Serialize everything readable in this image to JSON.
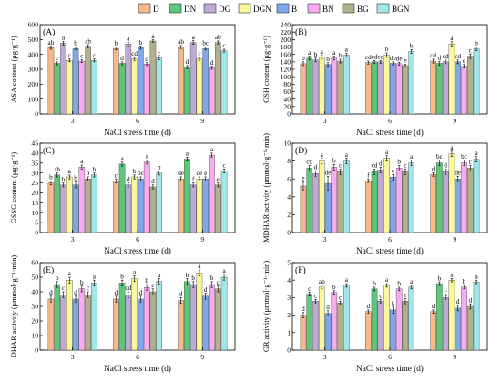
{
  "legend": [
    {
      "name": "D",
      "color": "#f7b98a"
    },
    {
      "name": "DN",
      "color": "#5ec77a"
    },
    {
      "name": "DG",
      "color": "#bfaad6"
    },
    {
      "name": "DGN",
      "color": "#fbf79c"
    },
    {
      "name": "B",
      "color": "#7fa8ec"
    },
    {
      "name": "BN",
      "color": "#f6acee"
    },
    {
      "name": "BG",
      "color": "#b1b08a"
    },
    {
      "name": "BGN",
      "color": "#9ee8ec"
    }
  ],
  "chart_data": [
    {
      "type": "bar",
      "panel": "(A)",
      "ylabel": "ASA content (μg·g⁻¹)",
      "xlabel": "NaCl stress time (d)",
      "categories": [
        "3",
        "6",
        "9"
      ],
      "ylim": [
        0,
        600
      ],
      "yticks": [
        0,
        100,
        200,
        300,
        400,
        500,
        600
      ],
      "series": [
        {
          "name": "D",
          "values": [
            445,
            440,
            450
          ],
          "errors": [
            10,
            10,
            10
          ],
          "labels": [
            "ab",
            "b",
            "ab"
          ]
        },
        {
          "name": "DN",
          "values": [
            340,
            340,
            315
          ],
          "errors": [
            10,
            10,
            10
          ],
          "labels": [
            "c",
            "d",
            "d"
          ]
        },
        {
          "name": "DG",
          "values": [
            475,
            470,
            480
          ],
          "errors": [
            12,
            12,
            12
          ],
          "labels": [
            "a",
            "a",
            "a"
          ]
        },
        {
          "name": "DGN",
          "values": [
            360,
            370,
            370
          ],
          "errors": [
            10,
            10,
            10
          ],
          "labels": [
            "c",
            "cd",
            "c"
          ]
        },
        {
          "name": "B",
          "values": [
            440,
            445,
            440
          ],
          "errors": [
            10,
            10,
            10
          ],
          "labels": [
            "b",
            "b",
            "bc"
          ]
        },
        {
          "name": "BN",
          "values": [
            355,
            335,
            310
          ],
          "errors": [
            10,
            10,
            10
          ],
          "labels": [
            "c",
            "d",
            "d"
          ]
        },
        {
          "name": "BG",
          "values": [
            455,
            490,
            480
          ],
          "errors": [
            10,
            8,
            10
          ],
          "labels": [
            "ab",
            "a",
            "ab"
          ]
        },
        {
          "name": "BGN",
          "values": [
            360,
            375,
            425
          ],
          "errors": [
            10,
            10,
            10
          ],
          "labels": [
            "c",
            "c",
            "c"
          ]
        }
      ]
    },
    {
      "type": "bar",
      "panel": "(B)",
      "ylabel": "GSH content (μg·g⁻¹)",
      "xlabel": "NaCl stress time (d)",
      "categories": [
        "3",
        "6",
        "9"
      ],
      "ylim": [
        0,
        240
      ],
      "yticks": [
        0,
        20,
        40,
        60,
        80,
        100,
        120,
        140,
        160,
        180,
        200,
        220,
        240
      ],
      "series": [
        {
          "name": "D",
          "values": [
            135,
            138,
            142
          ],
          "errors": [
            5,
            4,
            5
          ],
          "labels": [
            "b",
            "cd",
            "cd"
          ]
        },
        {
          "name": "DN",
          "values": [
            150,
            140,
            136
          ],
          "errors": [
            5,
            4,
            5
          ],
          "labels": [
            "a",
            "cd",
            "d"
          ]
        },
        {
          "name": "DG",
          "values": [
            145,
            140,
            140
          ],
          "errors": [
            5,
            4,
            5
          ],
          "labels": [
            "b",
            "cd",
            "cd"
          ]
        },
        {
          "name": "DGN",
          "values": [
            152,
            158,
            188
          ],
          "errors": [
            5,
            6,
            6
          ],
          "labels": [
            "a",
            "b",
            "a"
          ]
        },
        {
          "name": "B",
          "values": [
            133,
            136,
            140
          ],
          "errors": [
            5,
            4,
            5
          ],
          "labels": [
            "b",
            "de",
            "cd"
          ]
        },
        {
          "name": "BN",
          "values": [
            150,
            135,
            128
          ],
          "errors": [
            5,
            4,
            5
          ],
          "labels": [
            "a",
            "de",
            "e"
          ]
        },
        {
          "name": "BG",
          "values": [
            142,
            130,
            155
          ],
          "errors": [
            5,
            4,
            6
          ],
          "labels": [
            "b",
            "e",
            "c"
          ]
        },
        {
          "name": "BGN",
          "values": [
            158,
            168,
            175
          ],
          "errors": [
            5,
            5,
            5
          ],
          "labels": [
            "a",
            "b",
            "b"
          ]
        }
      ]
    },
    {
      "type": "bar",
      "panel": "(C)",
      "ylabel": "GSSG content (μg·g⁻¹)",
      "xlabel": "NaCl stress time (d)",
      "categories": [
        "3",
        "6",
        "9"
      ],
      "ylim": [
        0,
        45
      ],
      "yticks": [
        0,
        5,
        10,
        15,
        20,
        25,
        30,
        35,
        40,
        45
      ],
      "series": [
        {
          "name": "D",
          "values": [
            25,
            26,
            27
          ],
          "errors": [
            1,
            1,
            1
          ],
          "labels": [
            "b",
            "c",
            "de"
          ]
        },
        {
          "name": "DN",
          "values": [
            29,
            34.5,
            37
          ],
          "errors": [
            1,
            1,
            1
          ],
          "labels": [
            "ab",
            "a",
            "a"
          ]
        },
        {
          "name": "DG",
          "values": [
            24,
            24,
            24
          ],
          "errors": [
            1,
            1,
            1
          ],
          "labels": [
            "b",
            "d",
            "f"
          ]
        },
        {
          "name": "DGN",
          "values": [
            28,
            28,
            27
          ],
          "errors": [
            1,
            1,
            1
          ],
          "labels": [
            "a",
            "b",
            "de"
          ]
        },
        {
          "name": "B",
          "values": [
            24,
            27,
            27
          ],
          "errors": [
            1.5,
            1,
            1
          ],
          "labels": [
            "b",
            "bc",
            "e"
          ]
        },
        {
          "name": "BN",
          "values": [
            33,
            35.5,
            39
          ],
          "errors": [
            1,
            1,
            1
          ],
          "labels": [
            "a",
            "a",
            "a"
          ]
        },
        {
          "name": "BG",
          "values": [
            27,
            23,
            24
          ],
          "errors": [
            1,
            1,
            1
          ],
          "labels": [
            "b",
            "d",
            "e"
          ]
        },
        {
          "name": "BGN",
          "values": [
            29,
            30,
            31
          ],
          "errors": [
            1,
            1,
            1
          ],
          "labels": [
            "b",
            "b",
            "c"
          ]
        }
      ]
    },
    {
      "type": "bar",
      "panel": "(D)",
      "ylabel": "MDHAR activity (μmmol·g⁻¹·min)",
      "xlabel": "NaCl stress time (d)",
      "categories": [
        "3",
        "6",
        "9"
      ],
      "ylim": [
        0,
        10
      ],
      "yticks": [
        0,
        2,
        4,
        6,
        8,
        10
      ],
      "series": [
        {
          "name": "D",
          "values": [
            5.2,
            5.8,
            6.5
          ],
          "errors": [
            0.5,
            0.2,
            0.2
          ],
          "labels": [
            "e",
            "f",
            "d"
          ]
        },
        {
          "name": "DN",
          "values": [
            7.2,
            6.8,
            7.8
          ],
          "errors": [
            0.3,
            0.3,
            0.3
          ],
          "labels": [
            "cd",
            "cd",
            "bc"
          ]
        },
        {
          "name": "DG",
          "values": [
            6.6,
            7.0,
            6.8
          ],
          "errors": [
            0.3,
            0.3,
            0.3
          ],
          "labels": [
            "d",
            "d",
            "d"
          ]
        },
        {
          "name": "DGN",
          "values": [
            8.0,
            8.3,
            8.8
          ],
          "errors": [
            0.3,
            0.3,
            0.3
          ],
          "labels": [
            "a",
            "a",
            "a"
          ]
        },
        {
          "name": "B",
          "values": [
            5.5,
            6.2,
            6.0
          ],
          "errors": [
            0.8,
            0.3,
            0.3
          ],
          "labels": [
            "de",
            "e",
            "de"
          ]
        },
        {
          "name": "BN",
          "values": [
            7.3,
            7.2,
            7.8
          ],
          "errors": [
            0.3,
            0.3,
            0.3
          ],
          "labels": [
            "b",
            "b",
            "bc"
          ]
        },
        {
          "name": "BG",
          "values": [
            6.8,
            6.8,
            7.2
          ],
          "errors": [
            0.3,
            0.3,
            0.3
          ],
          "labels": [
            "c",
            "c",
            "c"
          ]
        },
        {
          "name": "BGN",
          "values": [
            8.0,
            7.8,
            8.2
          ],
          "errors": [
            0.3,
            0.3,
            0.3
          ],
          "labels": [
            "a",
            "a",
            "a"
          ]
        }
      ]
    },
    {
      "type": "bar",
      "panel": "(E)",
      "ylabel": "DHAR activity (μmmol·g⁻¹·min)",
      "xlabel": "NaCl stress time (d)",
      "categories": [
        "3",
        "6",
        "9"
      ],
      "ylim": [
        0,
        60
      ],
      "yticks": [
        0,
        10,
        20,
        30,
        40,
        50,
        60
      ],
      "series": [
        {
          "name": "D",
          "values": [
            35,
            35,
            34
          ],
          "errors": [
            2,
            2,
            2
          ],
          "labels": [
            "d",
            "d",
            "d"
          ]
        },
        {
          "name": "DN",
          "values": [
            45,
            46,
            47
          ],
          "errors": [
            2,
            2,
            2
          ],
          "labels": [
            "b",
            "b",
            "b"
          ]
        },
        {
          "name": "DG",
          "values": [
            38,
            38,
            45
          ],
          "errors": [
            2,
            2,
            2
          ],
          "labels": [
            "c",
            "cd",
            "b"
          ]
        },
        {
          "name": "DGN",
          "values": [
            48,
            49,
            53
          ],
          "errors": [
            2,
            2,
            2
          ],
          "labels": [
            "a",
            "a",
            "a"
          ]
        },
        {
          "name": "B",
          "values": [
            35,
            35,
            37
          ],
          "errors": [
            2,
            2,
            2
          ],
          "labels": [
            "d",
            "d",
            "d"
          ]
        },
        {
          "name": "BN",
          "values": [
            42,
            43,
            45
          ],
          "errors": [
            2,
            2,
            2
          ],
          "labels": [
            "b",
            "b",
            "b"
          ]
        },
        {
          "name": "BG",
          "values": [
            38,
            40,
            42
          ],
          "errors": [
            2,
            2,
            2
          ],
          "labels": [
            "c",
            "c",
            "c"
          ]
        },
        {
          "name": "BGN",
          "values": [
            46,
            47,
            50
          ],
          "errors": [
            2,
            2,
            2
          ],
          "labels": [
            "a",
            "a",
            "a"
          ]
        }
      ]
    },
    {
      "type": "bar",
      "panel": "(F)",
      "ylabel": "GR activity (μmmol·g⁻¹·min)",
      "xlabel": "NaCl stress time (d)",
      "categories": [
        "3",
        "6",
        "9"
      ],
      "ylim": [
        0,
        5
      ],
      "yticks": [
        0,
        1,
        2,
        3,
        4,
        5
      ],
      "series": [
        {
          "name": "D",
          "values": [
            2.0,
            2.2,
            2.2
          ],
          "errors": [
            0.15,
            0.1,
            0.1
          ],
          "labels": [
            "d",
            "d",
            "d"
          ]
        },
        {
          "name": "DN",
          "values": [
            3.2,
            3.5,
            3.8
          ],
          "errors": [
            0.1,
            0.1,
            0.1
          ],
          "labels": [
            "c",
            "b",
            "b"
          ]
        },
        {
          "name": "DG",
          "values": [
            2.8,
            2.8,
            3.0
          ],
          "errors": [
            0.1,
            0.1,
            0.1
          ],
          "labels": [
            "c",
            "c",
            "c"
          ]
        },
        {
          "name": "DGN",
          "values": [
            3.6,
            3.7,
            4.0
          ],
          "errors": [
            0.1,
            0.1,
            0.1
          ],
          "labels": [
            "ab",
            "a",
            "a"
          ]
        },
        {
          "name": "B",
          "values": [
            2.1,
            2.3,
            2.4
          ],
          "errors": [
            0.15,
            0.2,
            0.15
          ],
          "labels": [
            "d",
            "d",
            "d"
          ]
        },
        {
          "name": "BN",
          "values": [
            3.3,
            3.5,
            3.6
          ],
          "errors": [
            0.1,
            0.1,
            0.1
          ],
          "labels": [
            "b",
            "b",
            "b"
          ]
        },
        {
          "name": "BG",
          "values": [
            2.7,
            2.8,
            2.5
          ],
          "errors": [
            0.1,
            0.15,
            0.15
          ],
          "labels": [
            "c",
            "c",
            "d"
          ]
        },
        {
          "name": "BGN",
          "values": [
            3.7,
            3.6,
            3.9
          ],
          "errors": [
            0.1,
            0.1,
            0.1
          ],
          "labels": [
            "a",
            "a",
            "a"
          ]
        }
      ]
    }
  ]
}
